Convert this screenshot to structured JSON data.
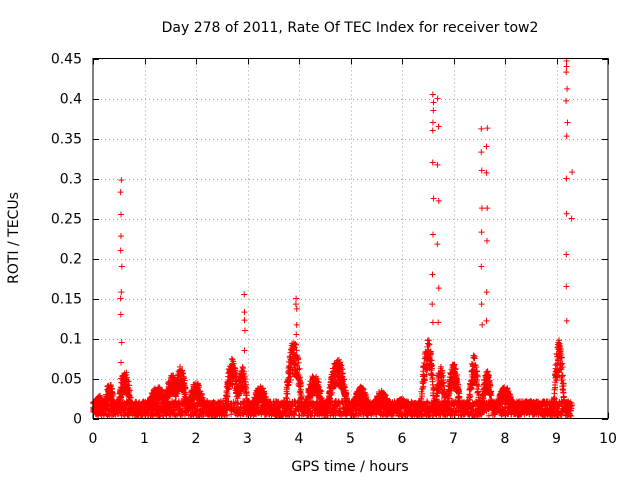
{
  "chart_data": {
    "type": "scatter",
    "title": "Day 278 of 2011, Rate Of TEC Index for receiver tow2",
    "xlabel": "GPS time / hours",
    "ylabel": "ROTI / TECUs",
    "xlim": [
      0,
      10
    ],
    "ylim": [
      0,
      0.45
    ],
    "xticks": [
      0,
      1,
      2,
      3,
      4,
      5,
      6,
      7,
      8,
      9,
      10
    ],
    "yticks": [
      0,
      0.05,
      0.1,
      0.15,
      0.2,
      0.25,
      0.3,
      0.35,
      0.4,
      0.45
    ],
    "grid": true,
    "marker": "+",
    "color": "#ff0000",
    "series": [
      {
        "name": "ROTI",
        "background": {
          "x_range": [
            0,
            9.3
          ],
          "baseline_min": 0.003,
          "baseline_max": 0.022,
          "note": "dense cluster of low ROTI values across the whole observation period"
        },
        "bumps": [
          {
            "center": 0.12,
            "width": 0.12,
            "peak": 0.03
          },
          {
            "center": 0.32,
            "width": 0.12,
            "peak": 0.045
          },
          {
            "center": 0.62,
            "width": 0.15,
            "peak": 0.06
          },
          {
            "center": 1.25,
            "width": 0.25,
            "peak": 0.04
          },
          {
            "center": 1.55,
            "width": 0.2,
            "peak": 0.055
          },
          {
            "center": 1.7,
            "width": 0.15,
            "peak": 0.065
          },
          {
            "center": 2.0,
            "width": 0.2,
            "peak": 0.045
          },
          {
            "center": 2.7,
            "width": 0.15,
            "peak": 0.075
          },
          {
            "center": 2.9,
            "width": 0.12,
            "peak": 0.065
          },
          {
            "center": 3.25,
            "width": 0.2,
            "peak": 0.04
          },
          {
            "center": 3.9,
            "width": 0.18,
            "peak": 0.1
          },
          {
            "center": 4.3,
            "width": 0.2,
            "peak": 0.055
          },
          {
            "center": 4.75,
            "width": 0.22,
            "peak": 0.075
          },
          {
            "center": 5.2,
            "width": 0.2,
            "peak": 0.04
          },
          {
            "center": 5.6,
            "width": 0.2,
            "peak": 0.035
          },
          {
            "center": 6.0,
            "width": 0.2,
            "peak": 0.025
          },
          {
            "center": 6.5,
            "width": 0.15,
            "peak": 0.1
          },
          {
            "center": 6.75,
            "width": 0.12,
            "peak": 0.065
          },
          {
            "center": 7.0,
            "width": 0.15,
            "peak": 0.07
          },
          {
            "center": 7.4,
            "width": 0.12,
            "peak": 0.08
          },
          {
            "center": 7.65,
            "width": 0.12,
            "peak": 0.06
          },
          {
            "center": 8.0,
            "width": 0.2,
            "peak": 0.04
          },
          {
            "center": 8.5,
            "width": 0.25,
            "peak": 0.02
          },
          {
            "center": 9.05,
            "width": 0.12,
            "peak": 0.1
          }
        ],
        "spikes": [
          {
            "x": 0.55,
            "y": [
              0.05,
              0.07,
              0.095,
              0.13,
              0.15,
              0.158,
              0.19,
              0.21,
              0.228,
              0.255,
              0.283,
              0.298
            ]
          },
          {
            "x": 2.95,
            "y": [
              0.085,
              0.11,
              0.123,
              0.133,
              0.155
            ]
          },
          {
            "x": 3.95,
            "y": [
              0.105,
              0.117,
              0.137,
              0.143,
              0.15
            ]
          },
          {
            "x": 6.6,
            "y": [
              0.12,
              0.143,
              0.18,
              0.23,
              0.275,
              0.32,
              0.36,
              0.37,
              0.385,
              0.395,
              0.405
            ]
          },
          {
            "x": 6.7,
            "y": [
              0.12,
              0.163,
              0.218,
              0.272,
              0.317,
              0.365,
              0.4
            ]
          },
          {
            "x": 7.55,
            "y": [
              0.117,
              0.143,
              0.19,
              0.233,
              0.263,
              0.31,
              0.333,
              0.362
            ]
          },
          {
            "x": 7.65,
            "y": [
              0.122,
              0.158,
              0.222,
              0.263,
              0.307,
              0.34,
              0.363
            ]
          },
          {
            "x": 9.2,
            "y": [
              0.122,
              0.165,
              0.205,
              0.256,
              0.3,
              0.353,
              0.37,
              0.397,
              0.412,
              0.433,
              0.44,
              0.447
            ]
          },
          {
            "x": 9.3,
            "y": [
              0.25,
              0.308
            ]
          }
        ]
      }
    ]
  }
}
